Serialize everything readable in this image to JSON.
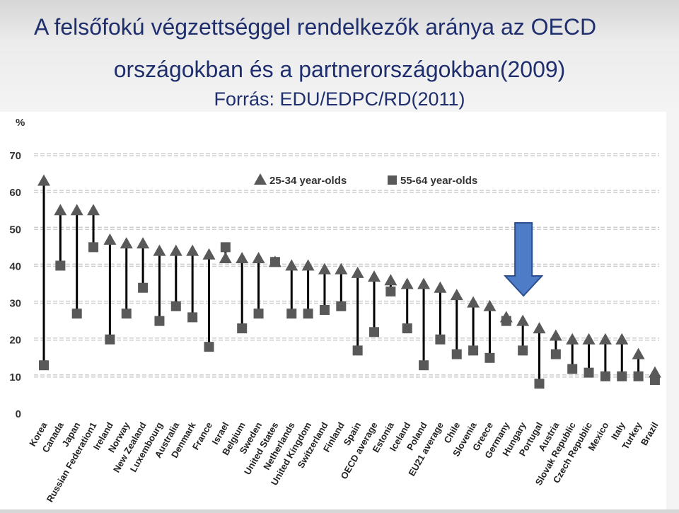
{
  "title": {
    "line1": "A felsőfokú végzettséggel rendelkezők aránya az OECD",
    "line2": "országokban és a partnerországokban(2009)",
    "line3": "Forrás: EDU/EDPC/RD(2011)"
  },
  "chart_data": {
    "type": "scatter",
    "ylabel": "%",
    "ylim": [
      0,
      70
    ],
    "yticks": [
      0,
      10,
      20,
      30,
      40,
      50,
      60,
      70
    ],
    "grid": true,
    "legend_position": "top",
    "categories": [
      "Korea",
      "Canada",
      "Japan",
      "Russian Federation1",
      "Ireland",
      "Norway",
      "New Zealand",
      "Luxembourg",
      "Australia",
      "Denmark",
      "France",
      "Israel",
      "Belgium",
      "Sweden",
      "United States",
      "Netherlands",
      "United Kingdom",
      "Switzerland",
      "Finland",
      "Spain",
      "OECD average",
      "Estonia",
      "Iceland",
      "Poland",
      "EU21 average",
      "Chile",
      "Slovenia",
      "Greece",
      "Germany",
      "Hungary",
      "Portugal",
      "Austria",
      "Slovak Republic",
      "Czech Republic",
      "Mexico",
      "Italy",
      "Turkey",
      "Brazil"
    ],
    "series": [
      {
        "name": "25-34 year-olds",
        "marker": "triangle",
        "color": "#595959",
        "values": [
          63,
          55,
          55,
          55,
          47,
          46,
          46,
          44,
          44,
          44,
          43,
          42,
          42,
          42,
          41,
          40,
          40,
          39,
          39,
          38,
          37,
          36,
          35,
          35,
          34,
          32,
          30,
          29,
          26,
          25,
          23,
          21,
          20,
          20,
          20,
          20,
          16,
          11
        ]
      },
      {
        "name": "55-64 year-olds",
        "marker": "square",
        "color": "#595959",
        "values": [
          13,
          40,
          27,
          45,
          20,
          27,
          34,
          25,
          29,
          26,
          18,
          45,
          23,
          27,
          41,
          27,
          27,
          28,
          29,
          17,
          22,
          33,
          23,
          13,
          20,
          16,
          17,
          15,
          25,
          17,
          8,
          16,
          12,
          11,
          10,
          10,
          10,
          9
        ]
      }
    ],
    "highlight_arrow": "Hungary",
    "colors": {
      "marker": "#595959",
      "stem": "#000000",
      "grid": "#cfcfcf",
      "arrow_fill": "#4f7cc6",
      "arrow_stroke": "#2c4f8f",
      "title": "#1f2f6e"
    }
  }
}
